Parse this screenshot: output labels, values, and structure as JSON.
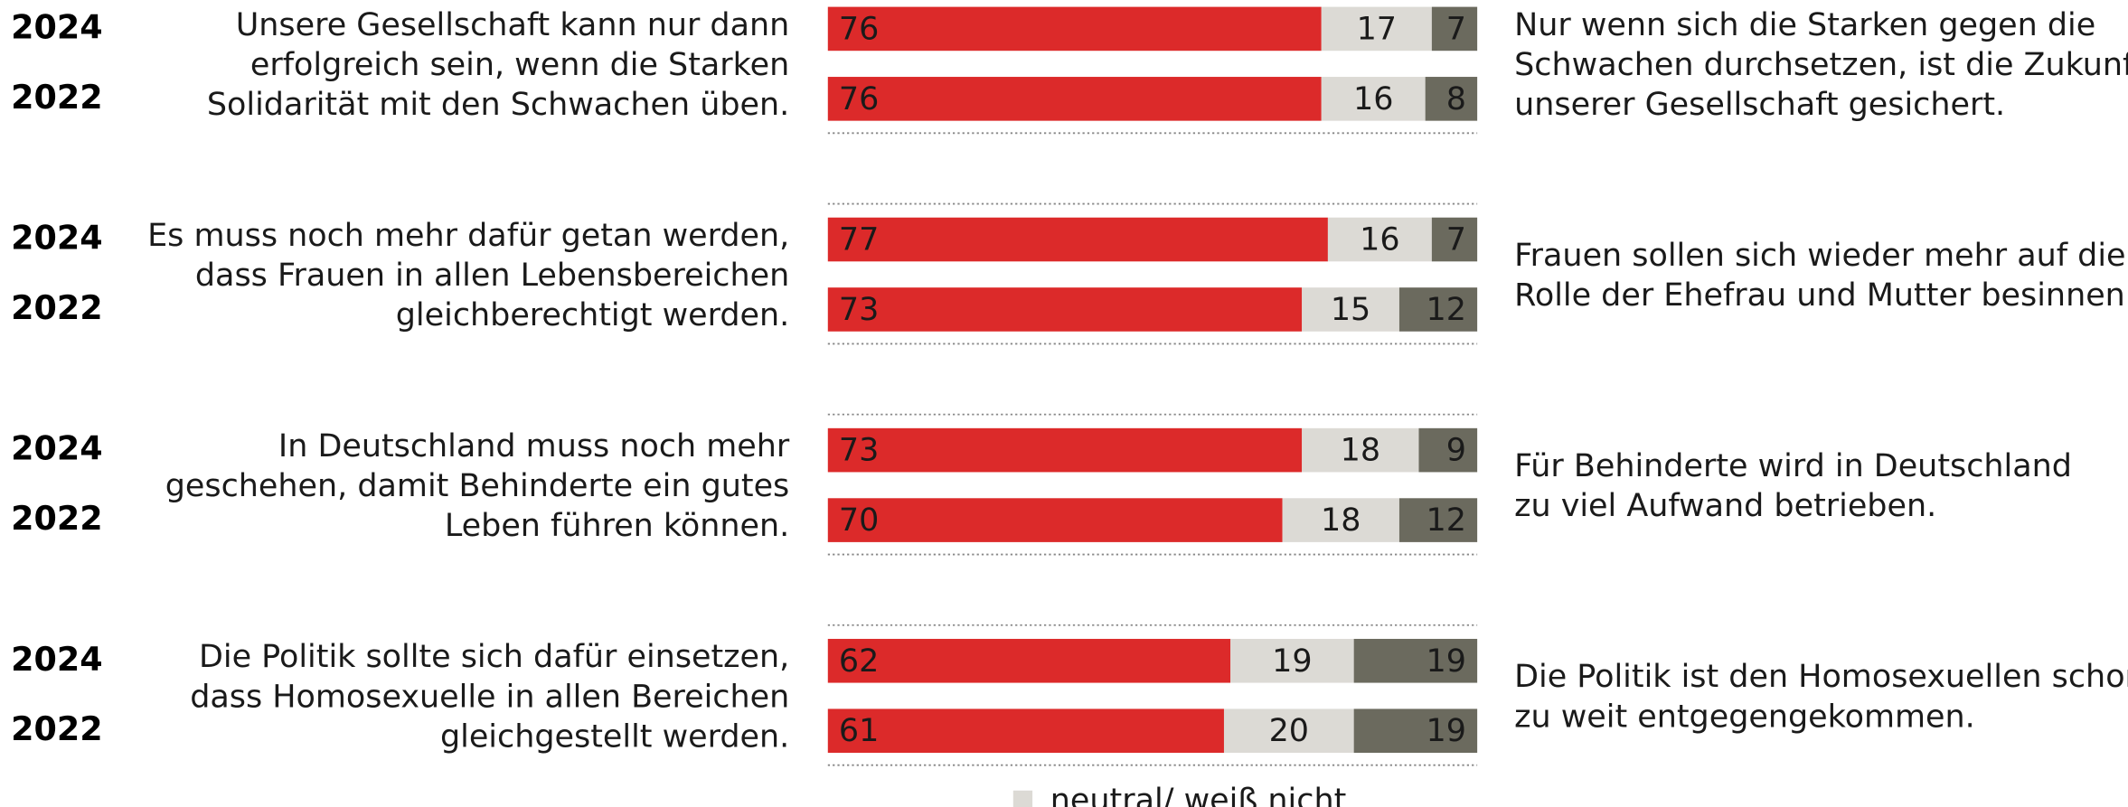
{
  "chart_data": {
    "type": "bar",
    "orientation": "horizontal",
    "stacked": true,
    "xlim": [
      0,
      100
    ],
    "groups": [
      {
        "left": [
          "Unsere Gesellschaft kann nur dann",
          "erfolgreich sein, wenn die Starken",
          "Solidarität mit den Schwachen üben."
        ],
        "right": [
          "Nur wenn sich die Starken gegen die",
          "Schwachen durchsetzen, ist die Zukunft",
          "unserer Gesellschaft gesichert."
        ]
      },
      {
        "left": [
          "Es muss noch mehr dafür getan werden,",
          "dass Frauen in allen Lebensbereichen",
          "gleichberechtigt werden."
        ],
        "right": [
          "Frauen sollen sich wieder mehr auf die",
          "Rolle der Ehefrau und Mutter besinnen."
        ]
      },
      {
        "left": [
          "In Deutschland muss noch mehr",
          "geschehen, damit Behinderte ein gutes",
          "Leben führen können."
        ],
        "right": [
          "Für Behinderte wird in Deutschland",
          "zu viel Aufwand betrieben."
        ]
      },
      {
        "left": [
          "Die Politik sollte sich dafür einsetzen,",
          "dass Homosexuelle in allen Bereichen",
          "gleichgestellt werden."
        ],
        "right": [
          "Die Politik ist den Homosexuellen schon",
          "zu weit entgegengekommen."
        ]
      }
    ],
    "categories": [
      "2024",
      "2022",
      "2024",
      "2022",
      "2024",
      "2022",
      "2024",
      "2022"
    ],
    "series": [
      {
        "color": "#dc2a2a",
        "values": [
          76,
          76,
          77,
          73,
          73,
          70,
          62,
          61
        ]
      },
      {
        "name": "neutral/ weiß nicht",
        "color": "#dcdad5",
        "values": [
          17,
          16,
          16,
          15,
          18,
          18,
          19,
          20
        ]
      },
      {
        "color": "#6b6a5e",
        "values": [
          7,
          8,
          7,
          12,
          9,
          12,
          19,
          19
        ]
      }
    ]
  }
}
